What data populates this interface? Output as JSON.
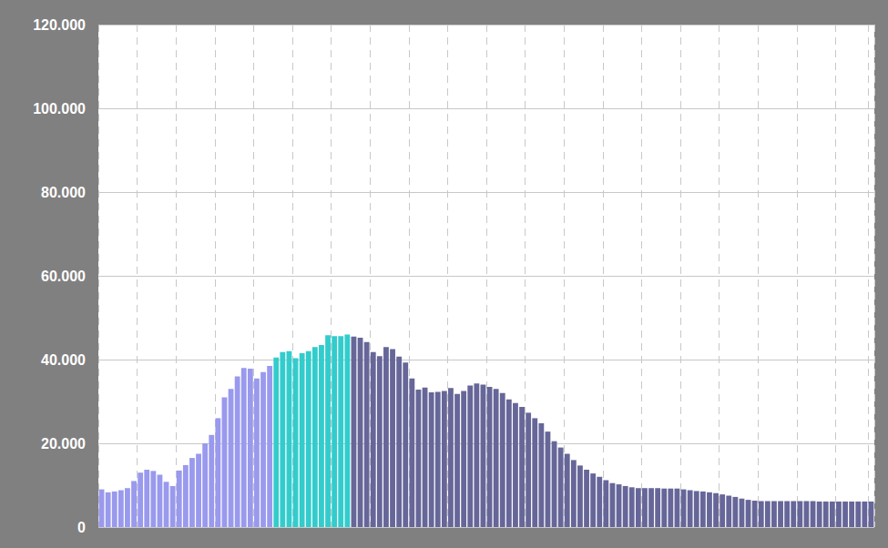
{
  "chart_data": {
    "type": "bar",
    "categories": [
      null,
      null,
      null,
      null,
      null,
      null,
      null,
      null,
      null,
      null,
      null,
      null,
      null,
      null,
      null,
      null,
      null,
      null,
      null,
      null,
      null,
      null,
      null,
      null,
      null,
      null,
      null,
      null,
      null,
      null,
      null,
      null,
      null,
      null,
      null,
      null,
      null,
      null,
      null,
      null,
      null,
      null,
      null,
      null,
      null,
      null,
      null,
      null,
      null,
      null,
      null,
      null,
      null,
      null,
      null,
      null,
      null,
      null,
      null,
      null,
      null,
      null,
      null,
      null,
      null,
      null,
      null,
      null,
      null,
      null,
      null,
      null,
      null,
      null,
      null,
      null,
      null,
      null,
      null,
      null,
      null,
      null,
      null,
      null,
      null,
      null,
      null,
      null,
      null,
      null,
      null,
      null,
      null,
      null,
      null,
      null,
      null,
      null,
      null,
      null,
      null,
      null,
      null,
      null,
      null,
      null,
      null,
      null,
      null,
      null,
      null,
      null,
      null,
      null,
      null,
      null,
      null,
      null,
      null,
      null
    ],
    "values": [
      9000,
      8300,
      8500,
      8800,
      9300,
      11000,
      13000,
      13700,
      13400,
      12500,
      10800,
      9800,
      13500,
      14800,
      16500,
      17500,
      20000,
      22000,
      26000,
      31000,
      33000,
      36000,
      38000,
      37800,
      35500,
      37000,
      38500,
      40500,
      41800,
      42000,
      40300,
      41500,
      42000,
      43000,
      43500,
      45800,
      45600,
      45600,
      46000,
      45500,
      45200,
      44200,
      41800,
      40800,
      43000,
      42500,
      40700,
      39300,
      35500,
      32800,
      33300,
      32200,
      32300,
      32500,
      33200,
      31800,
      32500,
      33800,
      34300,
      34000,
      33500,
      33000,
      32000,
      30500,
      29600,
      28700,
      27300,
      26000,
      24800,
      22800,
      20500,
      19000,
      17500,
      16000,
      14700,
      13700,
      12800,
      12000,
      11200,
      10500,
      10200,
      9800,
      9500,
      9300,
      9300,
      9300,
      9300,
      9200,
      9200,
      9200,
      9000,
      8800,
      8600,
      8500,
      8300,
      8100,
      7800,
      7500,
      7200,
      6800,
      6500,
      6300,
      6200,
      6200,
      6200,
      6200,
      6200,
      6200,
      6200,
      6200,
      6200,
      6100,
      6100,
      6100,
      6100,
      6100,
      6100,
      6100,
      6100,
      6100
    ],
    "colors": [
      "#9999ee",
      "#9999ee",
      "#9999ee",
      "#9999ee",
      "#9999ee",
      "#9999ee",
      "#9999ee",
      "#9999ee",
      "#9999ee",
      "#9999ee",
      "#9999ee",
      "#9999ee",
      "#9999ee",
      "#9999ee",
      "#9999ee",
      "#9999ee",
      "#9999ee",
      "#9999ee",
      "#9999ee",
      "#9999ee",
      "#9999ee",
      "#9999ee",
      "#9999ee",
      "#9999ee",
      "#9999ee",
      "#9999ee",
      "#9999ee",
      "#33cccc",
      "#33cccc",
      "#33cccc",
      "#33cccc",
      "#33cccc",
      "#33cccc",
      "#33cccc",
      "#33cccc",
      "#33cccc",
      "#33cccc",
      "#33cccc",
      "#33cccc",
      "#666699",
      "#666699",
      "#666699",
      "#666699",
      "#666699",
      "#666699",
      "#666699",
      "#666699",
      "#666699",
      "#666699",
      "#666699",
      "#666699",
      "#666699",
      "#666699",
      "#666699",
      "#666699",
      "#666699",
      "#666699",
      "#666699",
      "#666699",
      "#666699",
      "#666699",
      "#666699",
      "#666699",
      "#666699",
      "#666699",
      "#666699",
      "#666699",
      "#666699",
      "#666699",
      "#666699",
      "#666699",
      "#666699",
      "#666699",
      "#666699",
      "#666699",
      "#666699",
      "#666699",
      "#666699",
      "#666699",
      "#666699",
      "#666699",
      "#666699",
      "#666699",
      "#666699",
      "#666699",
      "#666699",
      "#666699",
      "#666699",
      "#666699",
      "#666699",
      "#666699",
      "#666699",
      "#666699",
      "#666699",
      "#666699",
      "#666699",
      "#666699",
      "#666699",
      "#666699",
      "#666699",
      "#666699",
      "#666699",
      "#666699",
      "#666699",
      "#666699",
      "#666699",
      "#666699",
      "#666699",
      "#666699",
      "#666699",
      "#666699",
      "#666699",
      "#666699",
      "#666699",
      "#666699",
      "#666699",
      "#666699",
      "#666699",
      "#666699",
      "#666699"
    ],
    "ylim": [
      0,
      120000
    ],
    "yticks": [
      {
        "value": 0,
        "label": "0"
      },
      {
        "value": 20000,
        "label": "20.000"
      },
      {
        "value": 40000,
        "label": "40.000"
      },
      {
        "value": 60000,
        "label": "60.000"
      },
      {
        "value": 80000,
        "label": "80.000"
      },
      {
        "value": 100000,
        "label": "100.000"
      },
      {
        "value": 120000,
        "label": "120.000"
      }
    ],
    "grid": true,
    "tick_labels": "y"
  }
}
